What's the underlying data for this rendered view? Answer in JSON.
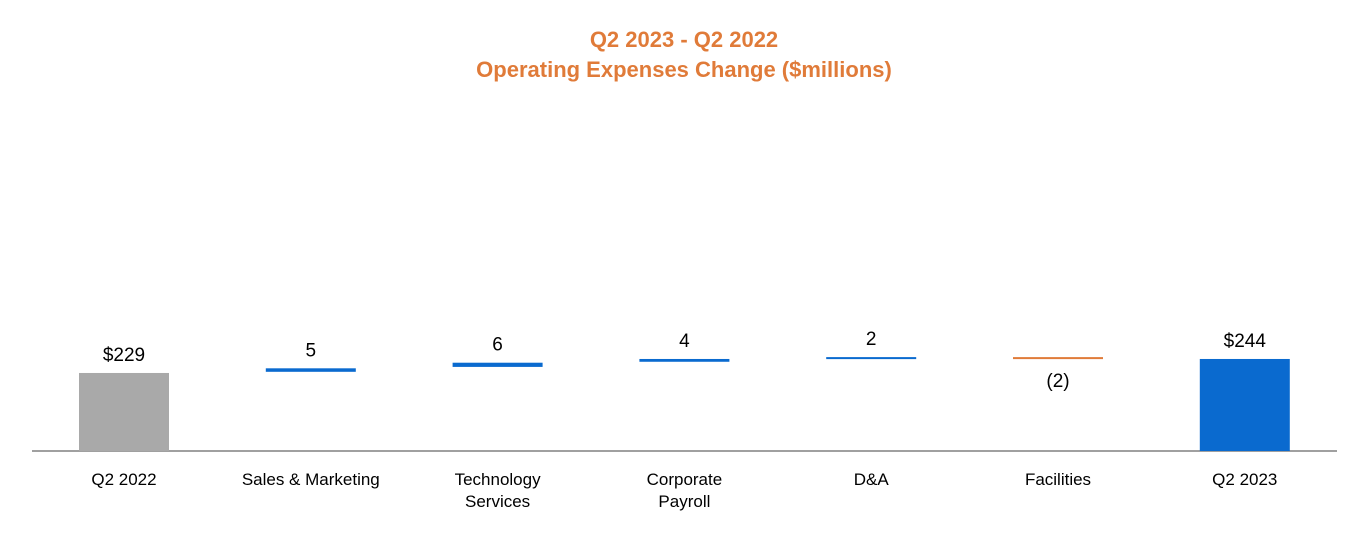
{
  "chart_data": {
    "type": "waterfall",
    "title": "Q2 2023 - Q2 2022",
    "subtitle": "Operating Expenses Change ($millions)",
    "categories": [
      [
        "Q2 2022"
      ],
      [
        "Sales & Marketing"
      ],
      [
        "Technology",
        "Services"
      ],
      [
        "Corporate",
        "Payroll"
      ],
      [
        "D&A"
      ],
      [
        "Facilities"
      ],
      [
        "Q2 2023"
      ]
    ],
    "values": [
      229,
      5,
      6,
      4,
      2,
      -2,
      244
    ],
    "kinds": [
      "total",
      "delta",
      "delta",
      "delta",
      "delta",
      "delta",
      "total"
    ],
    "data_labels": [
      "$229",
      "5",
      "6",
      "4",
      "2",
      "(2)",
      "$244"
    ],
    "ylim": [
      0,
      250
    ]
  },
  "colors": {
    "title": "#E07B39",
    "start_total": "#A9A9A9",
    "end_total": "#0A6ACF",
    "increase": "#0A6ACF",
    "decrease": "#E07B39",
    "axis": "#A0A0A0"
  }
}
